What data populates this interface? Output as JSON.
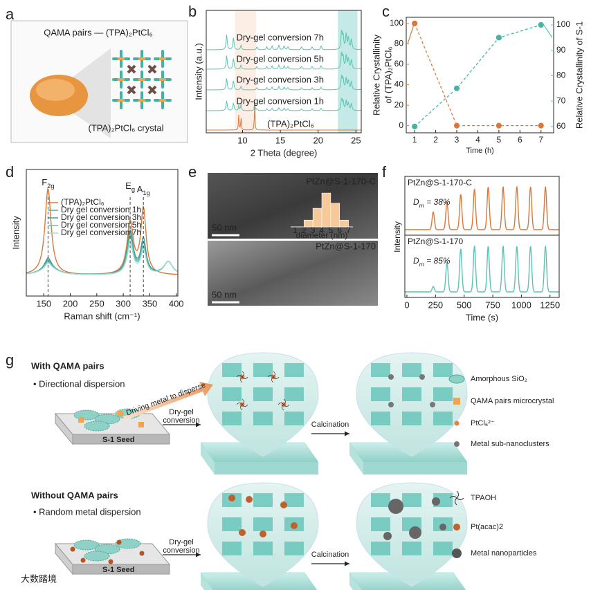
{
  "panel_labels": [
    "a",
    "b",
    "c",
    "d",
    "e",
    "f",
    "g"
  ],
  "a": {
    "title": "QAMA pairs — (TPA)₂PtCl₆",
    "caption": "(TPA)₂PtCl₆ crystal"
  },
  "b": {
    "xlabel": "2 Theta (degree)",
    "ylabel": "Intensity (a.u.)",
    "xlim": [
      5.2,
      25.7
    ],
    "xticks": [
      10,
      15,
      20,
      25
    ],
    "traces": [
      "Dry-gel conversion 7h",
      "Dry-gel conversion 5h",
      "Dry-gel conversion 3h",
      "Dry-gel conversion 1h",
      "(TPA)₂PtCl₆"
    ]
  },
  "c": {
    "type": "line",
    "xlabel": "Time (h)",
    "ylabel": [
      "Relative Crystallinity",
      "of (TPA)₂PtCl₆"
    ],
    "y2label": "Relative Crystallinity of S-1",
    "x": [
      1,
      3,
      5,
      7
    ],
    "xlim": [
      0.6,
      7.6
    ],
    "xticks": [
      1,
      2,
      3,
      4,
      5,
      6,
      7
    ],
    "ylim": [
      -7,
      106
    ],
    "yticks": [
      0,
      20,
      40,
      60,
      80,
      100
    ],
    "y2lim": [
      57.5,
      103
    ],
    "y2ticks": [
      60,
      70,
      80,
      90,
      100
    ],
    "series": [
      {
        "color": "#d9783a",
        "values": [
          100,
          0,
          0,
          0
        ]
      },
      {
        "color": "#45b3a4",
        "axis": "y2",
        "values": [
          60,
          75,
          95,
          100
        ]
      }
    ]
  },
  "d": {
    "xlabel": "Raman shift (cm⁻¹)",
    "ylabel": "Intensity",
    "xlim": [
      117,
      403
    ],
    "xticks": [
      150,
      200,
      250,
      300,
      350,
      400
    ],
    "peaks": [
      {
        "base": "F",
        "sub": "2g"
      },
      {
        "base": "E",
        "sub": "g"
      },
      {
        "base": "A",
        "sub": "1g"
      }
    ],
    "legend": [
      "(TPA)₂PtCl₆",
      "Dry gel conversion 1h",
      "Dry gel conversion 3h",
      "Dry gel conversion 5h",
      "Dry gel conversion 7h"
    ]
  },
  "e": {
    "top_label": "PtZn@S-1-170-C",
    "bottom_label": "PtZn@S-1-170",
    "scale_bar": "50 nm",
    "inset_xlabel": "diameter (nm)",
    "inset_xticks": [
      1,
      2,
      3,
      4,
      5,
      6,
      7
    ],
    "inset_bins": [
      2,
      3,
      4,
      5,
      6,
      7
    ],
    "inset_counts": [
      8,
      22,
      40,
      28,
      8
    ]
  },
  "f": {
    "xlabel": "Time (s)",
    "ylabel": "Intensity",
    "xlim": [
      -18,
      1330
    ],
    "xticks": [
      0,
      250,
      500,
      750,
      1000,
      1250
    ],
    "top": {
      "label": "PtZn@S-1-170-C",
      "dm": {
        "base": "D",
        "sub": "m",
        "rest": " = 38%"
      }
    },
    "bottom": {
      "label": "PtZn@S-1-170",
      "dm": {
        "base": "D",
        "sub": "m",
        "rest": " = 85%"
      }
    }
  },
  "g": {
    "with_title": "With QAMA pairs",
    "with_note": "• Directional dispersion",
    "arrow_text": "Driving  metal to disperse",
    "seed": "S-1 Seed",
    "step1": [
      "Dry-gel",
      "conversion"
    ],
    "step2": "Calcination",
    "without_title": "Without QAMA pairs",
    "without_note": "• Random metal dispersion",
    "legend": [
      "Amorphous SiO₂",
      "QAMA pairs microcrystal",
      "PtCl₆²⁻",
      "Metal sub-nanoclusters",
      "TPAOH",
      "Pt(acac)2",
      "Metal nanoparticles"
    ],
    "watermark": "大数踏境"
  }
}
